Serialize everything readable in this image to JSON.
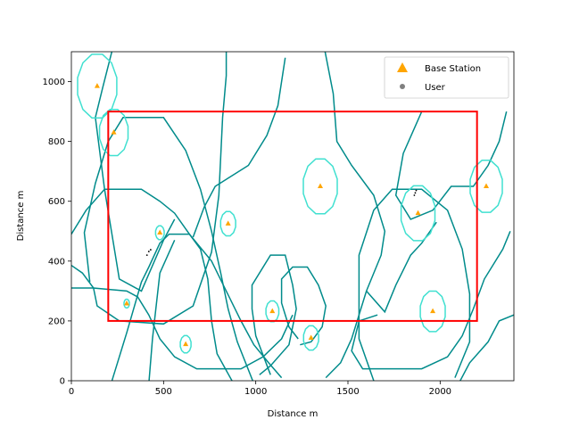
{
  "chart_data": {
    "type": "scatter",
    "xlabel": "Distance m",
    "ylabel": "Distance m",
    "xlim": [
      0,
      2400
    ],
    "ylim": [
      0,
      1100
    ],
    "x_ticks": [
      0,
      500,
      1000,
      1500,
      2000
    ],
    "y_ticks": [
      0,
      200,
      400,
      600,
      800,
      1000
    ],
    "x_tick_labels": [
      "0",
      "500",
      "1000",
      "1500",
      "2000"
    ],
    "y_tick_labels": [
      "0",
      "200",
      "400",
      "600",
      "800",
      "1000"
    ],
    "legend": {
      "placement": "top-right",
      "entries": [
        {
          "label": "Base Station",
          "marker": "triangle",
          "color": "#ffa500"
        },
        {
          "label": "User",
          "marker": "circle",
          "color": "#808080"
        }
      ]
    },
    "region_rectangle": {
      "x_min": 200,
      "x_max": 2200,
      "y_min": 200,
      "y_max": 900,
      "color": "#ff0000"
    },
    "base_stations": [
      {
        "x": 140,
        "y": 985
      },
      {
        "x": 230,
        "y": 830
      },
      {
        "x": 1350,
        "y": 650
      },
      {
        "x": 2250,
        "y": 650
      },
      {
        "x": 850,
        "y": 525
      },
      {
        "x": 1880,
        "y": 560
      },
      {
        "x": 480,
        "y": 495
      },
      {
        "x": 300,
        "y": 258
      },
      {
        "x": 1090,
        "y": 232
      },
      {
        "x": 1960,
        "y": 232
      },
      {
        "x": 1300,
        "y": 143
      },
      {
        "x": 620,
        "y": 122
      }
    ],
    "base_station_color": "#ffa500",
    "users": [
      {
        "x": 410,
        "y": 420
      },
      {
        "x": 420,
        "y": 432
      },
      {
        "x": 430,
        "y": 438
      },
      {
        "x": 1865,
        "y": 628
      },
      {
        "x": 1870,
        "y": 636
      },
      {
        "x": 1860,
        "y": 620
      }
    ],
    "user_color": "#000000",
    "coverage_small": [
      {
        "cx": 140,
        "cy": 985,
        "rx": 110,
        "ry": 110
      },
      {
        "cx": 230,
        "cy": 830,
        "rx": 80,
        "ry": 80
      },
      {
        "cx": 1350,
        "cy": 650,
        "rx": 95,
        "ry": 95
      },
      {
        "cx": 2250,
        "cy": 650,
        "rx": 90,
        "ry": 90
      },
      {
        "cx": 850,
        "cy": 525,
        "rx": 42,
        "ry": 42
      },
      {
        "cx": 1880,
        "cy": 560,
        "rx": 95,
        "ry": 95
      },
      {
        "cx": 480,
        "cy": 495,
        "rx": 24,
        "ry": 24
      },
      {
        "cx": 300,
        "cy": 258,
        "rx": 15,
        "ry": 15
      },
      {
        "cx": 1090,
        "cy": 232,
        "rx": 36,
        "ry": 36
      },
      {
        "cx": 1960,
        "cy": 232,
        "rx": 70,
        "ry": 70
      },
      {
        "cx": 1300,
        "cy": 143,
        "rx": 42,
        "ry": 42
      },
      {
        "cx": 620,
        "cy": 122,
        "rx": 30,
        "ry": 30
      }
    ],
    "coverage_small_color": "#40e0d0",
    "coverage_large": [
      [
        [
          0,
          310
        ],
        [
          120,
          310
        ],
        [
          140,
          250
        ],
        [
          260,
          200
        ],
        [
          500,
          190
        ],
        [
          660,
          250
        ],
        [
          760,
          430
        ],
        [
          800,
          620
        ],
        [
          820,
          880
        ],
        [
          840,
          1020
        ],
        [
          840,
          1100
        ]
      ],
      [
        [
          -10,
          390
        ],
        [
          60,
          360
        ],
        [
          120,
          310
        ],
        [
          300,
          300
        ],
        [
          360,
          280
        ],
        [
          420,
          220
        ],
        [
          480,
          140
        ],
        [
          560,
          80
        ],
        [
          680,
          40
        ],
        [
          920,
          40
        ],
        [
          1040,
          80
        ],
        [
          1140,
          140
        ],
        [
          1200,
          220
        ]
      ],
      [
        [
          0,
          490
        ],
        [
          80,
          570
        ],
        [
          180,
          640
        ],
        [
          380,
          640
        ],
        [
          480,
          600
        ],
        [
          560,
          560
        ],
        [
          640,
          490
        ],
        [
          700,
          440
        ],
        [
          740,
          340
        ],
        [
          760,
          200
        ],
        [
          790,
          90
        ],
        [
          880,
          -10
        ]
      ],
      [
        [
          100,
          330
        ],
        [
          70,
          495
        ],
        [
          130,
          660
        ],
        [
          200,
          800
        ],
        [
          280,
          880
        ],
        [
          390,
          880
        ],
        [
          500,
          880
        ],
        [
          620,
          770
        ],
        [
          700,
          640
        ],
        [
          760,
          500
        ],
        [
          810,
          360
        ],
        [
          850,
          240
        ],
        [
          900,
          130
        ],
        [
          990,
          -10
        ]
      ],
      [
        [
          220,
          0
        ],
        [
          300,
          160
        ],
        [
          380,
          330
        ],
        [
          420,
          380
        ],
        [
          480,
          460
        ],
        [
          530,
          490
        ],
        [
          640,
          490
        ],
        [
          760,
          400
        ],
        [
          840,
          300
        ],
        [
          920,
          200
        ],
        [
          990,
          120
        ],
        [
          1070,
          60
        ],
        [
          1140,
          10
        ]
      ],
      [
        [
          240,
          1150
        ],
        [
          170,
          980
        ],
        [
          130,
          880
        ],
        [
          180,
          640
        ],
        [
          260,
          340
        ],
        [
          380,
          300
        ],
        [
          500,
          470
        ],
        [
          560,
          540
        ]
      ],
      [
        [
          1080,
          20
        ],
        [
          1000,
          150
        ],
        [
          980,
          240
        ],
        [
          980,
          320
        ],
        [
          1080,
          420
        ],
        [
          1160,
          420
        ],
        [
          1200,
          320
        ],
        [
          1220,
          240
        ],
        [
          1180,
          120
        ],
        [
          1080,
          50
        ],
        [
          1020,
          20
        ]
      ],
      [
        [
          1230,
          140
        ],
        [
          1180,
          180
        ],
        [
          1140,
          260
        ],
        [
          1140,
          340
        ],
        [
          1200,
          380
        ],
        [
          1280,
          380
        ],
        [
          1340,
          320
        ],
        [
          1380,
          250
        ],
        [
          1360,
          180
        ],
        [
          1300,
          130
        ],
        [
          1240,
          120
        ]
      ],
      [
        [
          1360,
          1150
        ],
        [
          1420,
          960
        ],
        [
          1440,
          800
        ],
        [
          1520,
          720
        ],
        [
          1640,
          620
        ],
        [
          1700,
          500
        ],
        [
          1680,
          420
        ],
        [
          1600,
          300
        ],
        [
          1520,
          140
        ],
        [
          1460,
          60
        ],
        [
          1380,
          10
        ]
      ],
      [
        [
          1640,
          0
        ],
        [
          1560,
          140
        ],
        [
          1560,
          420
        ],
        [
          1640,
          570
        ],
        [
          1740,
          640
        ],
        [
          1900,
          640
        ],
        [
          2040,
          570
        ],
        [
          2120,
          440
        ],
        [
          2160,
          290
        ],
        [
          2160,
          130
        ],
        [
          2080,
          10
        ]
      ],
      [
        [
          1660,
          220
        ],
        [
          1560,
          200
        ],
        [
          1520,
          100
        ],
        [
          1580,
          40
        ],
        [
          1740,
          40
        ],
        [
          1900,
          40
        ],
        [
          2040,
          80
        ],
        [
          2120,
          150
        ],
        [
          2180,
          240
        ],
        [
          2240,
          340
        ],
        [
          2340,
          440
        ],
        [
          2380,
          500
        ]
      ],
      [
        [
          2100,
          -10
        ],
        [
          2160,
          60
        ],
        [
          2260,
          130
        ],
        [
          2320,
          200
        ],
        [
          2400,
          220
        ]
      ],
      [
        [
          1900,
          900
        ],
        [
          1800,
          760
        ],
        [
          1760,
          620
        ],
        [
          1840,
          540
        ],
        [
          1960,
          570
        ],
        [
          2060,
          650
        ],
        [
          2180,
          650
        ],
        [
          2260,
          720
        ],
        [
          2320,
          800
        ],
        [
          2360,
          900
        ]
      ],
      [
        [
          1600,
          300
        ],
        [
          1700,
          230
        ],
        [
          1760,
          320
        ],
        [
          1840,
          420
        ],
        [
          1900,
          460
        ],
        [
          1980,
          530
        ]
      ],
      [
        [
          420,
          -10
        ],
        [
          440,
          140
        ],
        [
          480,
          360
        ],
        [
          560,
          470
        ]
      ],
      [
        [
          1160,
          1080
        ],
        [
          1120,
          920
        ],
        [
          1060,
          820
        ],
        [
          960,
          720
        ],
        [
          780,
          650
        ],
        [
          720,
          580
        ],
        [
          660,
          480
        ]
      ]
    ],
    "coverage_large_color": "#008b8b"
  }
}
